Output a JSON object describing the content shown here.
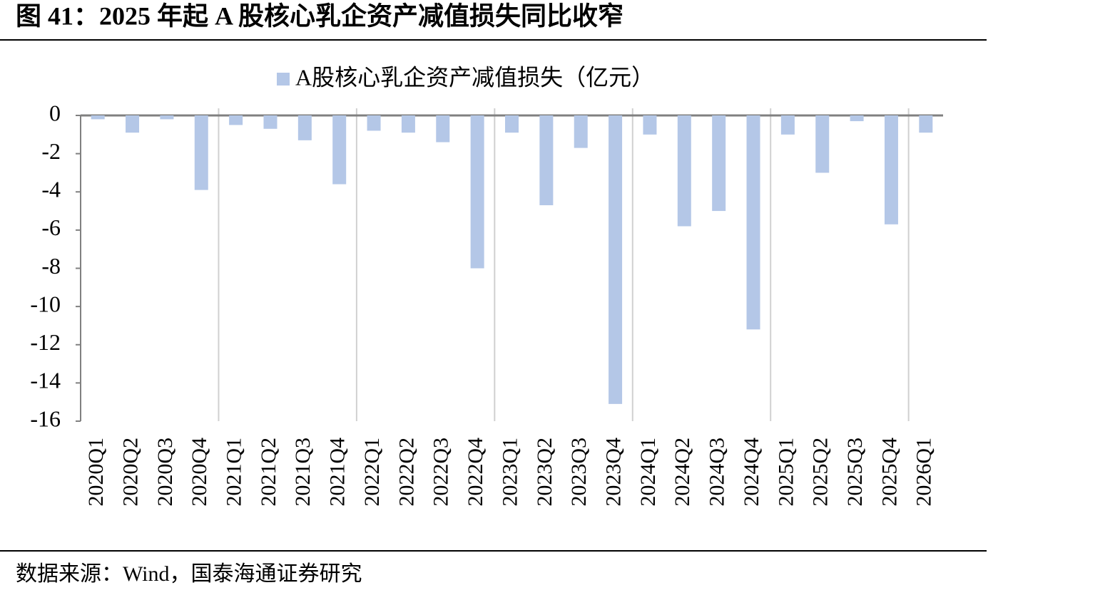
{
  "chart_data": {
    "type": "bar",
    "title": "图 41：2025 年起 A 股核心乳企资产减值损失同比收窄",
    "source": "数据来源：Wind，国泰海通证券研究",
    "categories": [
      "2020Q1",
      "2020Q2",
      "2020Q3",
      "2020Q4",
      "2021Q1",
      "2021Q2",
      "2021Q3",
      "2021Q4",
      "2022Q1",
      "2022Q2",
      "2022Q3",
      "2022Q4",
      "2023Q1",
      "2023Q2",
      "2023Q3",
      "2023Q4",
      "2024Q1",
      "2024Q2",
      "2024Q3",
      "2024Q4",
      "2025Q1",
      "2025Q2",
      "2025Q3",
      "2025Q4",
      "2026Q1"
    ],
    "series": [
      {
        "name": "A股核心乳企资产减值损失（亿元）",
        "color": "#b4c7e7",
        "values": [
          -0.2,
          -0.9,
          -0.2,
          -3.9,
          -0.5,
          -0.7,
          -1.3,
          -3.6,
          -0.8,
          -0.9,
          -1.4,
          -8.0,
          -0.9,
          -4.7,
          -1.7,
          -15.1,
          -1.0,
          -5.8,
          -5.0,
          -11.2,
          -1.0,
          -3.0,
          -0.3,
          -5.7,
          -0.9
        ]
      }
    ],
    "ylim": [
      -16,
      0
    ],
    "yticks": [
      0,
      -2,
      -4,
      -6,
      -8,
      -10,
      -12,
      -14,
      -16
    ],
    "legend": "top"
  }
}
